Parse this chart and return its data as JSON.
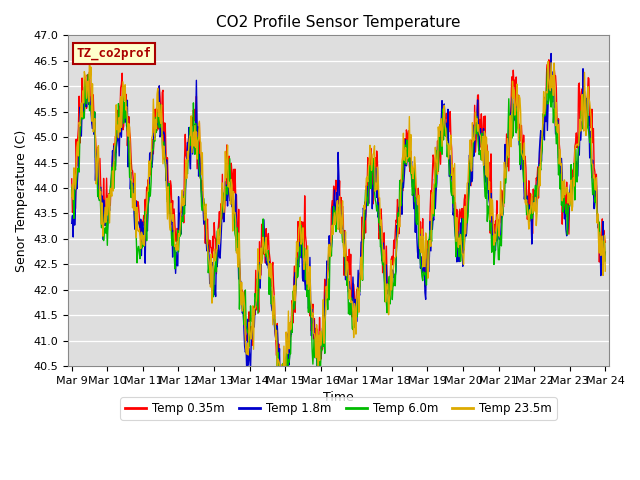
{
  "title": "CO2 Profile Sensor Temperature",
  "ylabel": "Senor Temperature (C)",
  "xlabel": "Time",
  "annotation": "TZ_co2prof",
  "ylim": [
    40.5,
    47.0
  ],
  "yticks": [
    40.5,
    41.0,
    41.5,
    42.0,
    42.5,
    43.0,
    43.5,
    44.0,
    44.5,
    45.0,
    45.5,
    46.0,
    46.5,
    47.0
  ],
  "xtick_labels": [
    "Mar 9",
    "Mar 10",
    "Mar 11",
    "Mar 12",
    "Mar 13",
    "Mar 14",
    "Mar 15",
    "Mar 16",
    "Mar 17",
    "Mar 18",
    "Mar 19",
    "Mar 20",
    "Mar 21",
    "Mar 22",
    "Mar 23",
    "Mar 24"
  ],
  "legend_labels": [
    "Temp 0.35m",
    "Temp 1.8m",
    "Temp 6.0m",
    "Temp 23.5m"
  ],
  "legend_colors": [
    "#ff0000",
    "#0000cc",
    "#00bb00",
    "#ddaa00"
  ],
  "line_colors": [
    "#ff0000",
    "#0000cc",
    "#00bb00",
    "#ddaa00"
  ],
  "plot_bg": "#dedede",
  "fig_bg": "#ffffff",
  "annotation_bg": "#ffffcc",
  "annotation_border": "#aa0000",
  "annotation_text_color": "#aa0000",
  "title_fontsize": 11,
  "label_fontsize": 9,
  "tick_fontsize": 8,
  "linewidth": 1.0,
  "n_points": 720
}
